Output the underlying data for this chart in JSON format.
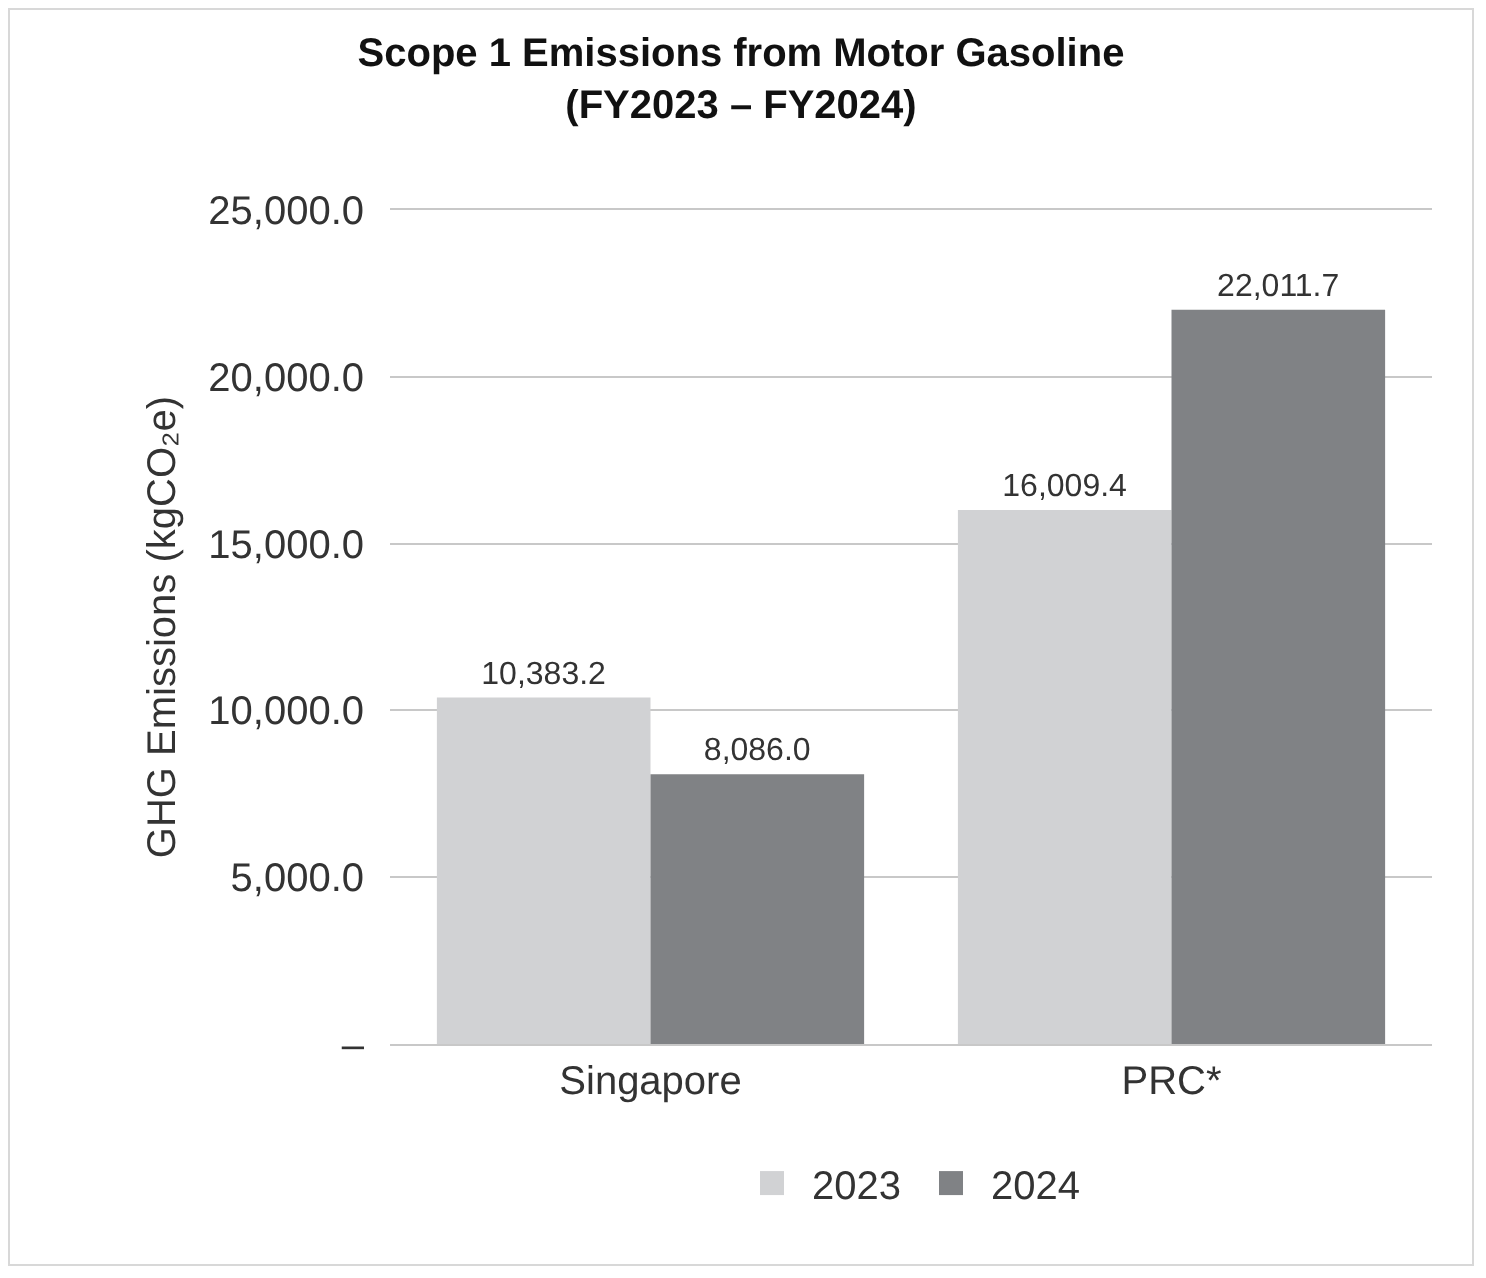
{
  "chart_data": {
    "type": "bar",
    "title": "Scope 1 Emissions from Motor Gasoline\n(FY2023 – FY2024)",
    "ylabel": "GHG Emissions (kgCO₂e)",
    "categories": [
      "Singapore",
      "PRC*"
    ],
    "series": [
      {
        "name": "2023",
        "color": "#d1d2d4",
        "values": [
          10383.2,
          16009.4
        ],
        "value_labels": [
          "10,383.2",
          "16,009.4"
        ]
      },
      {
        "name": "2024",
        "color": "#808285",
        "values": [
          8086.0,
          22011.7
        ],
        "value_labels": [
          "8,086.0",
          "22,011.7"
        ]
      }
    ],
    "ylim": [
      0,
      25000
    ],
    "yticks": [
      {
        "value": 0,
        "label": "–"
      },
      {
        "value": 5000,
        "label": "5,000.0"
      },
      {
        "value": 10000,
        "label": "10,000.0"
      },
      {
        "value": 15000,
        "label": "15,000.0"
      },
      {
        "value": 20000,
        "label": "20,000.0"
      },
      {
        "value": 25000,
        "label": "25,000.0"
      }
    ],
    "grid": "y",
    "legend": "bottom"
  }
}
